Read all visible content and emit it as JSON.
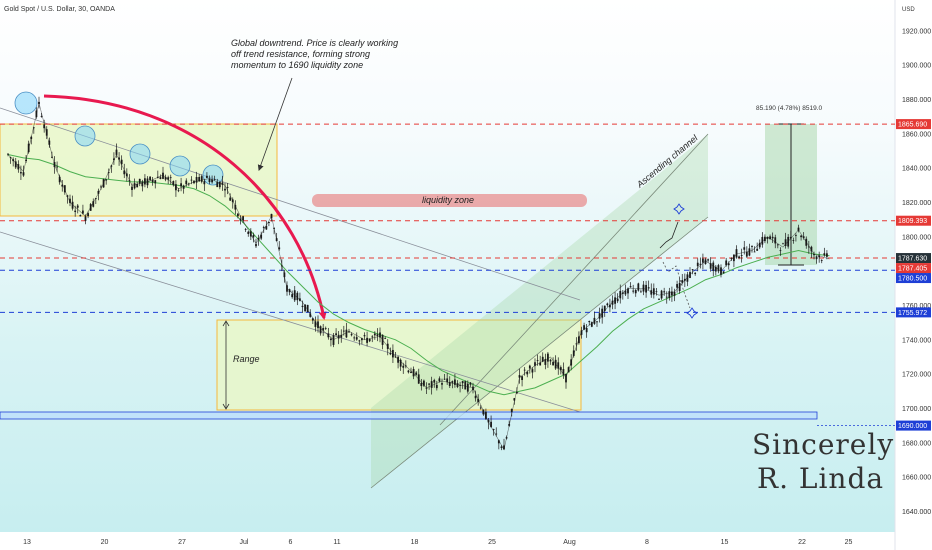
{
  "title": "Gold Spot / U.S. Dollar, 30, OANDA",
  "currency": "USD",
  "chart_data": {
    "type": "line",
    "title": "Gold Spot / U.S. Dollar, 30, OANDA",
    "ylim": [
      1628,
      1938
    ],
    "y_ticks": [
      1640,
      1660,
      1680,
      1700,
      1720,
      1740,
      1760,
      1780,
      1800,
      1820,
      1840,
      1860,
      1880,
      1900,
      1920
    ],
    "x_ticks": [
      {
        "label": "13",
        "i": 0
      },
      {
        "label": "20",
        "i": 5
      },
      {
        "label": "27",
        "i": 10
      },
      {
        "label": "Jul",
        "i": 14
      },
      {
        "label": "6",
        "i": 17
      },
      {
        "label": "11",
        "i": 20
      },
      {
        "label": "18",
        "i": 25
      },
      {
        "label": "25",
        "i": 30
      },
      {
        "label": "Aug",
        "i": 35
      },
      {
        "label": "8",
        "i": 40
      },
      {
        "label": "15",
        "i": 45
      },
      {
        "label": "22",
        "i": 50
      },
      {
        "label": "25",
        "i": 53
      }
    ],
    "series": [
      {
        "values": [
          1848,
          1838,
          1878,
          1842,
          1820,
          1812,
          1828,
          1848,
          1830,
          1832,
          1836,
          1828,
          1832,
          1834,
          1830,
          1812,
          1796,
          1812,
          1770,
          1762,
          1748,
          1740,
          1745,
          1740,
          1742,
          1730,
          1722,
          1712,
          1716,
          1714,
          1712,
          1692,
          1676,
          1718,
          1725,
          1730,
          1718,
          1745,
          1752,
          1762,
          1770,
          1770,
          1766,
          1768,
          1778,
          1786,
          1780,
          1790,
          1792,
          1800,
          1794,
          1804,
          1790,
          1787
        ]
      }
    ],
    "moving_average": [
      1848,
      1846,
      1845,
      1842,
      1838,
      1835,
      1834,
      1833,
      1832,
      1832,
      1831,
      1830,
      1828,
      1824,
      1818,
      1810,
      1800,
      1790,
      1780,
      1771,
      1762,
      1755,
      1750,
      1746,
      1743,
      1740,
      1735,
      1728,
      1722,
      1718,
      1714,
      1710,
      1708,
      1710,
      1712,
      1716,
      1720,
      1728,
      1736,
      1745,
      1752,
      1758,
      1762,
      1766,
      1770,
      1775,
      1778,
      1782,
      1785,
      1788,
      1790,
      1792,
      1790,
      1789
    ],
    "levels": [
      {
        "price": 1865.69,
        "label": "1865.690",
        "color": "#e53935",
        "style": "dashed"
      },
      {
        "price": 1809.393,
        "label": "1809.393",
        "color": "#e53935",
        "style": "dashed"
      },
      {
        "price": 1787.63,
        "label": "1787.630",
        "color": "#e53935",
        "style": "dashed"
      },
      {
        "price": 1787.405,
        "label": "1787.405",
        "color": "#e53935",
        "style": "none"
      },
      {
        "price": 1780.5,
        "label": "1780.500",
        "color": "#1e3fd6",
        "style": "dashed"
      },
      {
        "price": 1755.972,
        "label": "1755.972",
        "color": "#1e3fd6",
        "style": "dashed"
      },
      {
        "price": 1690.0,
        "label": "1690.000",
        "color": "#1e3fd6",
        "style": "double"
      }
    ],
    "annotations": {
      "global_note": [
        "Global downtrend. Price is clearly working",
        "off trend resistance, forming strong",
        "momentum to 1690 liquidity zone"
      ],
      "liquidity_zone": "liquidity zone",
      "range": "Range",
      "ascending_channel": "Ascending channel",
      "measure": "85.190 (4.78%) 8519.0",
      "signature": [
        "Sincerely",
        "R. Linda"
      ]
    }
  },
  "colors": {
    "red": "#e53935",
    "blue": "#1e3fd6",
    "candles": "#1a1a1a",
    "ma": "#4caf50",
    "zone_fill": "#e9f7c8",
    "zone_border": "#f5b83d",
    "channel_fill": "#a5d6a7",
    "liquidity": "#e88f8f",
    "arrow": "#e8194f"
  }
}
